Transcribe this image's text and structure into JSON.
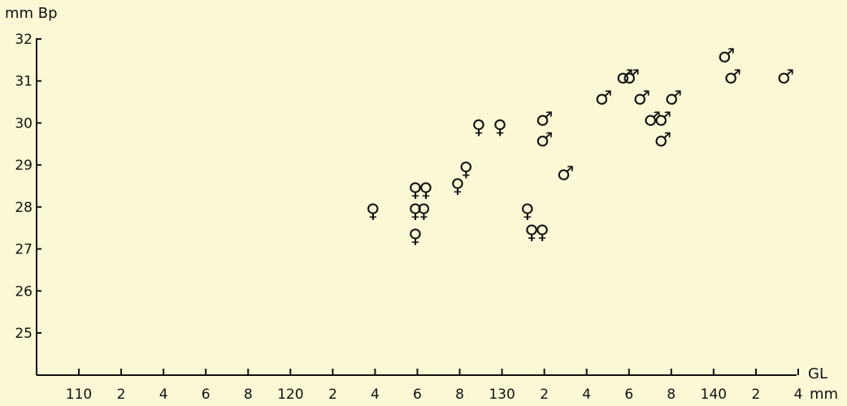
{
  "colors": {
    "background": "#fbf8d6",
    "ink": "#111111"
  },
  "chart_data": {
    "type": "scatter",
    "title": "",
    "ylabel": "mm Bp",
    "xlabel": "GL",
    "xunit": "mm",
    "xlim": [
      108,
      144
    ],
    "ylim": [
      24.3,
      32
    ],
    "grid": false,
    "x_ticks": [
      {
        "value": 110,
        "label": "110"
      },
      {
        "value": 112,
        "label": "2"
      },
      {
        "value": 114,
        "label": "4"
      },
      {
        "value": 116,
        "label": "6"
      },
      {
        "value": 118,
        "label": "8"
      },
      {
        "value": 120,
        "label": "120"
      },
      {
        "value": 122,
        "label": "2"
      },
      {
        "value": 124,
        "label": "4"
      },
      {
        "value": 126,
        "label": "6"
      },
      {
        "value": 128,
        "label": "8"
      },
      {
        "value": 130,
        "label": "130"
      },
      {
        "value": 132,
        "label": "2"
      },
      {
        "value": 134,
        "label": "4"
      },
      {
        "value": 136,
        "label": "6"
      },
      {
        "value": 138,
        "label": "8"
      },
      {
        "value": 140,
        "label": "140"
      },
      {
        "value": 142,
        "label": "2"
      },
      {
        "value": 144,
        "label": "4"
      }
    ],
    "y_ticks": [
      {
        "value": 25,
        "label": "25"
      },
      {
        "value": 26,
        "label": "26"
      },
      {
        "value": 27,
        "label": "27"
      },
      {
        "value": 28,
        "label": "28"
      },
      {
        "value": 29,
        "label": "29"
      },
      {
        "value": 30,
        "label": "30"
      },
      {
        "value": 31,
        "label": "31"
      },
      {
        "value": 32,
        "label": "32"
      }
    ],
    "series": [
      {
        "symbol": "♀",
        "points": [
          {
            "x": 123.9,
            "y": 27.9
          },
          {
            "x": 125.9,
            "y": 28.4
          },
          {
            "x": 126.4,
            "y": 28.4
          },
          {
            "x": 125.9,
            "y": 27.9
          },
          {
            "x": 126.3,
            "y": 27.9
          },
          {
            "x": 125.9,
            "y": 27.3
          },
          {
            "x": 127.9,
            "y": 28.5
          },
          {
            "x": 128.3,
            "y": 28.9
          },
          {
            "x": 128.9,
            "y": 29.9
          },
          {
            "x": 129.9,
            "y": 29.9
          },
          {
            "x": 131.2,
            "y": 27.9
          },
          {
            "x": 131.4,
            "y": 27.4
          },
          {
            "x": 131.9,
            "y": 27.4
          }
        ]
      },
      {
        "symbol": "♂",
        "points": [
          {
            "x": 132.0,
            "y": 30.1
          },
          {
            "x": 132.0,
            "y": 29.6
          },
          {
            "x": 133.0,
            "y": 28.8
          },
          {
            "x": 134.8,
            "y": 30.6
          },
          {
            "x": 135.8,
            "y": 31.1
          },
          {
            "x": 136.1,
            "y": 31.1
          },
          {
            "x": 136.6,
            "y": 30.6
          },
          {
            "x": 137.1,
            "y": 30.1
          },
          {
            "x": 137.6,
            "y": 30.1
          },
          {
            "x": 137.6,
            "y": 29.6
          },
          {
            "x": 138.1,
            "y": 30.6
          },
          {
            "x": 140.6,
            "y": 31.6
          },
          {
            "x": 140.9,
            "y": 31.1
          },
          {
            "x": 143.4,
            "y": 31.1
          }
        ]
      }
    ]
  }
}
